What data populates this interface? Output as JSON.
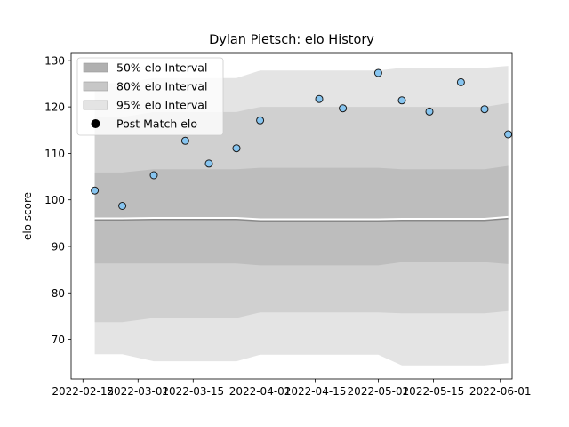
{
  "chart_data": {
    "type": "scatter",
    "title": "Dylan Pietsch: elo History",
    "xlabel": "",
    "ylabel": "elo score",
    "x_tick_labels": [
      "2022-02-15",
      "2022-03-01",
      "2022-03-15",
      "2022-04-01",
      "2022-04-15",
      "2022-05-01",
      "2022-05-15",
      "2022-06-01"
    ],
    "x_tick_dates": [
      "2022-02-15",
      "2022-03-01",
      "2022-03-15",
      "2022-04-01",
      "2022-04-15",
      "2022-05-01",
      "2022-05-15",
      "2022-06-01"
    ],
    "y_ticks": [
      70,
      80,
      90,
      100,
      110,
      120,
      130
    ],
    "xlim": [
      "2022-02-12",
      "2022-06-04"
    ],
    "ylim": [
      61.5,
      131.5
    ],
    "grid": false,
    "legend_placement": "upper left",
    "dates": [
      "2022-02-18",
      "2022-02-25",
      "2022-03-05",
      "2022-03-13",
      "2022-03-19",
      "2022-03-26",
      "2022-04-01",
      "2022-04-16",
      "2022-04-22",
      "2022-05-01",
      "2022-05-07",
      "2022-05-14",
      "2022-05-22",
      "2022-05-28",
      "2022-06-03"
    ],
    "mean": [
      95.7,
      95.7,
      95.8,
      95.8,
      95.8,
      95.8,
      95.5,
      95.5,
      95.5,
      95.5,
      95.6,
      95.6,
      95.6,
      95.6,
      96.0
    ],
    "interval_50": {
      "low": [
        86.3,
        86.3,
        86.3,
        86.3,
        86.3,
        86.3,
        85.9,
        85.9,
        85.9,
        85.9,
        86.6,
        86.6,
        86.6,
        86.6,
        86.2
      ],
      "high": [
        105.9,
        105.9,
        106.6,
        106.6,
        106.6,
        106.6,
        106.9,
        106.9,
        106.9,
        106.9,
        106.6,
        106.6,
        106.6,
        106.6,
        107.3
      ]
    },
    "interval_80": {
      "low": [
        73.7,
        73.7,
        74.6,
        74.6,
        74.6,
        74.6,
        75.8,
        75.8,
        75.8,
        75.8,
        75.6,
        75.6,
        75.6,
        75.6,
        76.1
      ],
      "high": [
        117.8,
        117.8,
        118.9,
        118.9,
        118.9,
        118.9,
        120.0,
        120.0,
        120.0,
        120.0,
        120.0,
        120.0,
        120.0,
        120.0,
        120.8
      ]
    },
    "interval_95": {
      "low": [
        66.8,
        66.8,
        65.3,
        65.3,
        65.3,
        65.3,
        66.7,
        66.7,
        66.7,
        66.7,
        64.4,
        64.4,
        64.4,
        64.4,
        64.9
      ],
      "high": [
        125.1,
        125.1,
        126.2,
        126.2,
        126.2,
        126.2,
        127.8,
        127.8,
        127.8,
        127.8,
        128.4,
        128.4,
        128.4,
        128.4,
        128.8
      ]
    },
    "series": [
      {
        "name": "Post Match elo",
        "x": [
          "2022-02-18",
          "2022-02-25",
          "2022-03-05",
          "2022-03-13",
          "2022-03-19",
          "2022-03-26",
          "2022-04-01",
          "2022-04-16",
          "2022-04-22",
          "2022-05-01",
          "2022-05-07",
          "2022-05-14",
          "2022-05-22",
          "2022-05-28",
          "2022-06-03"
        ],
        "y": [
          102.0,
          98.7,
          105.3,
          112.7,
          107.8,
          111.1,
          117.1,
          121.7,
          119.7,
          127.3,
          121.4,
          119.0,
          125.3,
          119.5,
          114.1
        ]
      }
    ],
    "legend": [
      {
        "label": "50% elo Interval",
        "color": "#b0b0b0",
        "kind": "patch"
      },
      {
        "label": "80% elo Interval",
        "color": "#c7c7c7",
        "kind": "patch"
      },
      {
        "label": "95% elo Interval",
        "color": "#e4e4e4",
        "kind": "patch"
      },
      {
        "label": "Post Match elo",
        "color": "#000000",
        "kind": "marker"
      }
    ],
    "colors": {
      "band_95": "#e4e4e4",
      "band_80": "#d0d0d0",
      "band_50": "#bdbdbd",
      "mean_line": "#888888",
      "point_fill": "#87c5f0",
      "point_edge": "#1a1a1a"
    }
  }
}
